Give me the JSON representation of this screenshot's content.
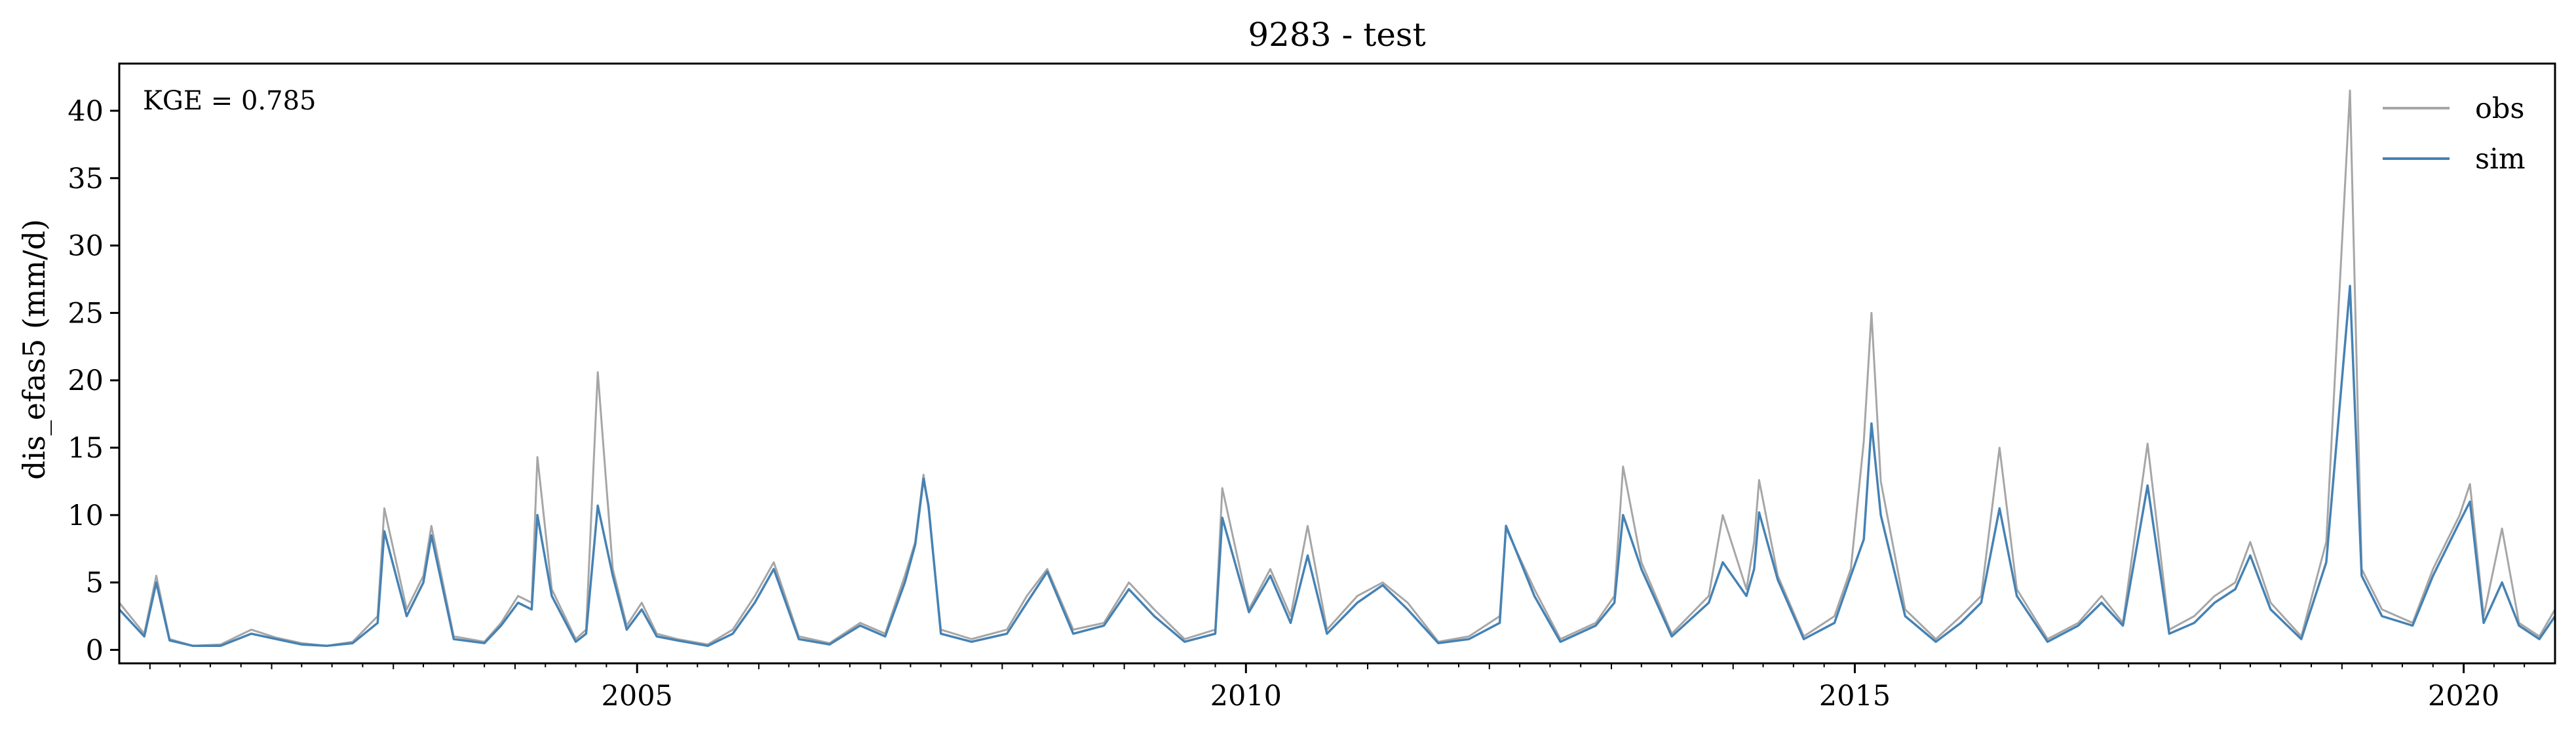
{
  "chart_data": {
    "type": "line",
    "title": "9283 - test",
    "xlabel": "",
    "ylabel": "dis_efas5 (mm/d)",
    "annotation": "KGE = 0.785",
    "xlim": [
      "2000-10-01",
      "2020-10-01"
    ],
    "ylim": [
      -1.0,
      43.5
    ],
    "x_ticks": [
      "2005",
      "2010",
      "2015",
      "2020"
    ],
    "y_ticks": [
      0,
      5,
      10,
      15,
      20,
      25,
      30,
      35,
      40
    ],
    "grid": false,
    "legend_position": "upper right",
    "colors": {
      "obs": "#a6a6a6",
      "sim": "#4682b4"
    },
    "series": [
      {
        "name": "obs",
        "x": [
          "2000-10-01",
          "2000-12-15",
          "2001-01-20",
          "2001-03-01",
          "2001-05-10",
          "2001-08-01",
          "2001-11-01",
          "2002-01-15",
          "2002-04-01",
          "2002-06-15",
          "2002-09-01",
          "2002-11-15",
          "2002-12-05",
          "2003-02-10",
          "2003-04-01",
          "2003-04-25",
          "2003-07-01",
          "2003-10-01",
          "2003-11-20",
          "2004-01-10",
          "2004-02-20",
          "2004-03-08",
          "2004-04-20",
          "2004-07-01",
          "2004-08-01",
          "2004-09-05",
          "2004-10-20",
          "2004-12-01",
          "2005-01-15",
          "2005-03-01",
          "2005-05-01",
          "2005-08-01",
          "2005-10-15",
          "2005-12-20",
          "2006-02-15",
          "2006-05-01",
          "2006-08-01",
          "2006-11-01",
          "2007-01-15",
          "2007-03-15",
          "2007-04-15",
          "2007-05-10",
          "2007-05-25",
          "2007-07-01",
          "2007-10-01",
          "2008-01-15",
          "2008-03-15",
          "2008-05-15",
          "2008-08-01",
          "2008-11-01",
          "2009-01-15",
          "2009-04-01",
          "2009-07-01",
          "2009-10-01",
          "2009-10-22",
          "2010-01-10",
          "2010-03-15",
          "2010-05-15",
          "2010-07-05",
          "2010-09-01",
          "2010-12-01",
          "2011-02-15",
          "2011-05-01",
          "2011-08-01",
          "2011-11-01",
          "2012-02-01",
          "2012-02-20",
          "2012-05-15",
          "2012-08-01",
          "2012-11-15",
          "2013-01-10",
          "2013-02-05",
          "2013-04-01",
          "2013-07-01",
          "2013-10-20",
          "2013-12-01",
          "2014-02-10",
          "2014-03-05",
          "2014-03-20",
          "2014-05-15",
          "2014-08-01",
          "2014-11-01",
          "2014-12-20",
          "2015-01-28",
          "2015-02-20",
          "2015-03-20",
          "2015-06-01",
          "2015-09-01",
          "2015-11-15",
          "2016-01-15",
          "2016-03-10",
          "2016-05-01",
          "2016-08-01",
          "2016-11-01",
          "2017-01-10",
          "2017-03-15",
          "2017-05-28",
          "2017-08-01",
          "2017-10-15",
          "2017-12-15",
          "2018-02-15",
          "2018-04-01",
          "2018-06-01",
          "2018-09-01",
          "2018-11-15",
          "2019-01-25",
          "2019-03-01",
          "2019-05-01",
          "2019-08-01",
          "2019-10-01",
          "2019-12-20",
          "2020-01-20",
          "2020-03-01",
          "2020-04-25",
          "2020-06-15",
          "2020-08-15",
          "2020-10-01"
        ],
        "values": [
          3.5,
          1.2,
          5.5,
          0.8,
          0.3,
          0.4,
          1.5,
          0.9,
          0.5,
          0.3,
          0.6,
          2.5,
          10.5,
          3.0,
          5.5,
          9.2,
          1.0,
          0.6,
          2.0,
          4.0,
          3.5,
          14.3,
          4.5,
          0.8,
          1.5,
          20.6,
          6.0,
          1.8,
          3.5,
          1.2,
          0.8,
          0.4,
          1.5,
          4.0,
          6.5,
          1.0,
          0.5,
          2.0,
          1.2,
          5.5,
          8.0,
          13.0,
          10.5,
          1.5,
          0.8,
          1.5,
          4.0,
          6.0,
          1.5,
          2.0,
          5.0,
          3.0,
          0.8,
          1.5,
          12.0,
          3.0,
          6.0,
          2.5,
          9.2,
          1.5,
          4.0,
          5.0,
          3.5,
          0.6,
          1.0,
          2.5,
          9.0,
          4.5,
          0.8,
          2.0,
          4.0,
          13.6,
          6.5,
          1.2,
          4.0,
          10.0,
          4.5,
          8.0,
          12.6,
          5.5,
          1.0,
          2.5,
          6.0,
          15.5,
          25.0,
          12.5,
          3.0,
          0.8,
          2.5,
          4.0,
          15.0,
          4.5,
          0.8,
          2.0,
          4.0,
          2.0,
          15.3,
          1.5,
          2.5,
          4.0,
          5.0,
          8.0,
          3.5,
          1.0,
          8.0,
          41.5,
          6.0,
          3.0,
          2.0,
          6.0,
          10.0,
          12.3,
          2.5,
          9.0,
          2.0,
          1.0,
          3.0
        ]
      },
      {
        "name": "sim",
        "x": [
          "2000-10-01",
          "2000-12-15",
          "2001-01-20",
          "2001-03-01",
          "2001-05-10",
          "2001-08-01",
          "2001-11-01",
          "2002-01-15",
          "2002-04-01",
          "2002-06-15",
          "2002-09-01",
          "2002-11-15",
          "2002-12-05",
          "2003-02-10",
          "2003-04-01",
          "2003-04-25",
          "2003-07-01",
          "2003-10-01",
          "2003-11-20",
          "2004-01-10",
          "2004-02-20",
          "2004-03-08",
          "2004-04-20",
          "2004-07-01",
          "2004-08-01",
          "2004-09-05",
          "2004-10-20",
          "2004-12-01",
          "2005-01-15",
          "2005-03-01",
          "2005-05-01",
          "2005-08-01",
          "2005-10-15",
          "2005-12-20",
          "2006-02-15",
          "2006-05-01",
          "2006-08-01",
          "2006-11-01",
          "2007-01-15",
          "2007-03-15",
          "2007-04-15",
          "2007-05-10",
          "2007-05-25",
          "2007-07-01",
          "2007-10-01",
          "2008-01-15",
          "2008-03-15",
          "2008-05-15",
          "2008-08-01",
          "2008-11-01",
          "2009-01-15",
          "2009-04-01",
          "2009-07-01",
          "2009-10-01",
          "2009-10-22",
          "2010-01-10",
          "2010-03-15",
          "2010-05-15",
          "2010-07-05",
          "2010-09-01",
          "2010-12-01",
          "2011-02-15",
          "2011-05-01",
          "2011-08-01",
          "2011-11-01",
          "2012-02-01",
          "2012-02-20",
          "2012-05-15",
          "2012-08-01",
          "2012-11-15",
          "2013-01-10",
          "2013-02-05",
          "2013-04-01",
          "2013-07-01",
          "2013-10-20",
          "2013-12-01",
          "2014-02-10",
          "2014-03-05",
          "2014-03-20",
          "2014-05-15",
          "2014-08-01",
          "2014-11-01",
          "2014-12-20",
          "2015-01-28",
          "2015-02-20",
          "2015-03-20",
          "2015-06-01",
          "2015-09-01",
          "2015-11-15",
          "2016-01-15",
          "2016-03-10",
          "2016-05-01",
          "2016-08-01",
          "2016-11-01",
          "2017-01-10",
          "2017-03-15",
          "2017-05-28",
          "2017-08-01",
          "2017-10-15",
          "2017-12-15",
          "2018-02-15",
          "2018-04-01",
          "2018-06-01",
          "2018-09-01",
          "2018-11-15",
          "2019-01-25",
          "2019-03-01",
          "2019-05-01",
          "2019-08-01",
          "2019-10-01",
          "2019-12-20",
          "2020-01-20",
          "2020-03-01",
          "2020-04-25",
          "2020-06-15",
          "2020-08-15",
          "2020-10-01"
        ],
        "values": [
          3.0,
          1.0,
          5.0,
          0.7,
          0.3,
          0.3,
          1.2,
          0.8,
          0.4,
          0.3,
          0.5,
          2.0,
          8.8,
          2.5,
          5.0,
          8.5,
          0.8,
          0.5,
          1.8,
          3.5,
          3.0,
          10.0,
          4.0,
          0.6,
          1.2,
          10.7,
          5.5,
          1.5,
          3.0,
          1.0,
          0.7,
          0.3,
          1.2,
          3.5,
          6.0,
          0.8,
          0.4,
          1.8,
          1.0,
          5.0,
          7.8,
          12.7,
          10.7,
          1.2,
          0.6,
          1.2,
          3.5,
          5.8,
          1.2,
          1.8,
          4.5,
          2.5,
          0.6,
          1.2,
          9.8,
          2.8,
          5.5,
          2.0,
          7.0,
          1.2,
          3.5,
          4.8,
          3.0,
          0.5,
          0.8,
          2.0,
          9.2,
          4.0,
          0.6,
          1.8,
          3.5,
          10.0,
          6.0,
          1.0,
          3.5,
          6.5,
          4.0,
          6.0,
          10.2,
          5.2,
          0.8,
          2.0,
          5.5,
          8.2,
          16.8,
          10.0,
          2.5,
          0.6,
          2.0,
          3.5,
          10.5,
          4.0,
          0.6,
          1.8,
          3.5,
          1.8,
          12.2,
          1.2,
          2.0,
          3.5,
          4.5,
          7.0,
          3.0,
          0.8,
          6.5,
          27.0,
          5.5,
          2.5,
          1.8,
          5.5,
          9.5,
          11.0,
          2.0,
          5.0,
          1.8,
          0.8,
          2.5
        ]
      }
    ]
  }
}
